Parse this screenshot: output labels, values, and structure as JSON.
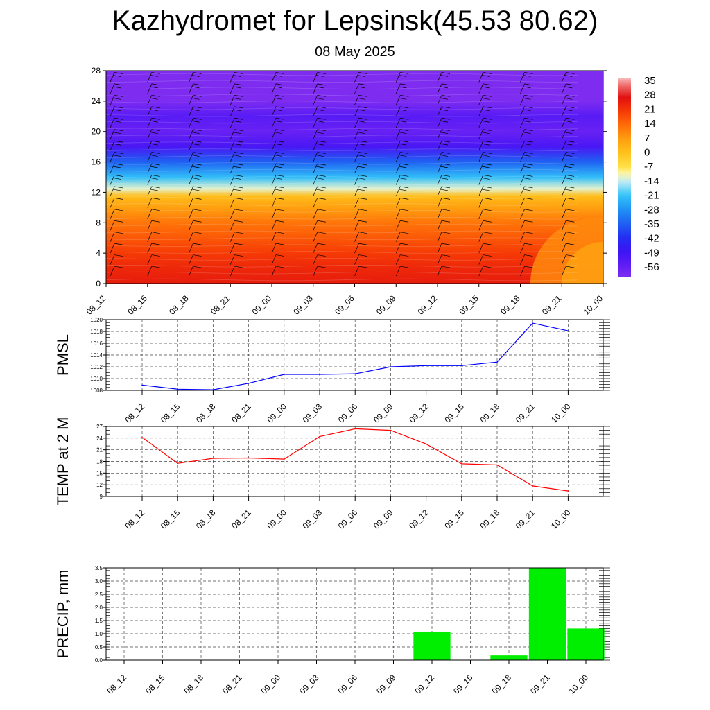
{
  "header": {
    "title": "Kazhydromet for Lepsinsk(45.53 80.62)",
    "subtitle": "08 May 2025"
  },
  "chart_data": [
    {
      "type": "heatmap",
      "x_tick_labels": [
        "08_12",
        "08_15",
        "08_18",
        "08_21",
        "09_00",
        "09_03",
        "09_06",
        "09_09",
        "09_12",
        "09_15",
        "09_18",
        "09_21",
        "10_00"
      ],
      "ylim": [
        0,
        28
      ],
      "y_ticks": [
        0,
        4,
        8,
        12,
        16,
        20,
        24,
        28
      ],
      "y_tick_labels": [
        "0",
        "4",
        "8",
        "12",
        "16",
        "20",
        "24",
        "28"
      ],
      "colorbar": {
        "labels": [
          "35",
          "28",
          "21",
          "14",
          "7",
          "0",
          "-7",
          "-14",
          "-21",
          "-28",
          "-35",
          "-42",
          "-49",
          "-56"
        ],
        "values": [
          35,
          28,
          21,
          14,
          7,
          0,
          -7,
          -14,
          -21,
          -28,
          -35,
          -42,
          -49,
          -56
        ],
        "range": [
          -62,
          38
        ]
      },
      "temperature_profile": {
        "levels": [
          0,
          2,
          4,
          6,
          8,
          10,
          11.5,
          12.5,
          14,
          16,
          18,
          20,
          22,
          24,
          28
        ],
        "values": [
          26,
          24,
          21,
          17,
          13,
          7,
          1,
          -12,
          -22,
          -35,
          -52,
          -58,
          -55,
          -62,
          -62
        ]
      }
    },
    {
      "type": "line",
      "ylabel": "PMSL",
      "categories": [
        "08_12",
        "08_15",
        "08_18",
        "08_21",
        "09_00",
        "09_03",
        "09_06",
        "09_09",
        "09_12",
        "09_15",
        "09_18",
        "09_21",
        "10_00"
      ],
      "values": [
        1008.9,
        1008.2,
        1008.1,
        1009.2,
        1010.7,
        1010.7,
        1010.8,
        1012.0,
        1012.2,
        1012.2,
        1012.8,
        1019.4,
        1018.1
      ],
      "ylim": [
        1008,
        1020
      ],
      "y_ticks": [
        1008,
        1010,
        1012,
        1014,
        1016,
        1018,
        1020
      ],
      "y_tick_labels": [
        "1008",
        "1010",
        "1012",
        "1014",
        "1016",
        "1018",
        "1020"
      ],
      "color": "#0000ff",
      "grid": true
    },
    {
      "type": "line",
      "ylabel": "TEMP at 2 M",
      "categories": [
        "08_12",
        "08_15",
        "08_18",
        "08_21",
        "09_00",
        "09_03",
        "09_06",
        "09_09",
        "09_12",
        "09_15",
        "09_18",
        "09_21",
        "10_00"
      ],
      "values": [
        24.2,
        17.5,
        18.8,
        18.9,
        18.6,
        24.4,
        26.4,
        26.0,
        22.5,
        17.4,
        17.1,
        11.7,
        10.4
      ],
      "ylim": [
        9,
        27
      ],
      "y_ticks": [
        9,
        12,
        15,
        18,
        21,
        24,
        27
      ],
      "y_tick_labels": [
        "9",
        "12",
        "15",
        "18",
        "21",
        "24",
        "27"
      ],
      "color": "#ff0000",
      "grid": true
    },
    {
      "type": "bar",
      "ylabel": "PRECIP, mm",
      "categories": [
        "08_12",
        "08_15",
        "08_18",
        "08_21",
        "09_00",
        "09_03",
        "09_06",
        "09_09",
        "09_12",
        "09_15",
        "09_18",
        "09_21",
        "10_00"
      ],
      "values": [
        0,
        0,
        0,
        0,
        0,
        0,
        0,
        0,
        1.08,
        0,
        0.18,
        3.5,
        1.2
      ],
      "ylim": [
        0,
        3.5
      ],
      "y_ticks": [
        0,
        0.5,
        1.0,
        1.5,
        2.0,
        2.5,
        3.0,
        3.5
      ],
      "y_tick_labels": [
        "0.0",
        "0.5",
        "1.0",
        "1.5",
        "2.0",
        "2.5",
        "3.0",
        "3.5"
      ],
      "color": "#00ee00",
      "grid": true
    }
  ]
}
